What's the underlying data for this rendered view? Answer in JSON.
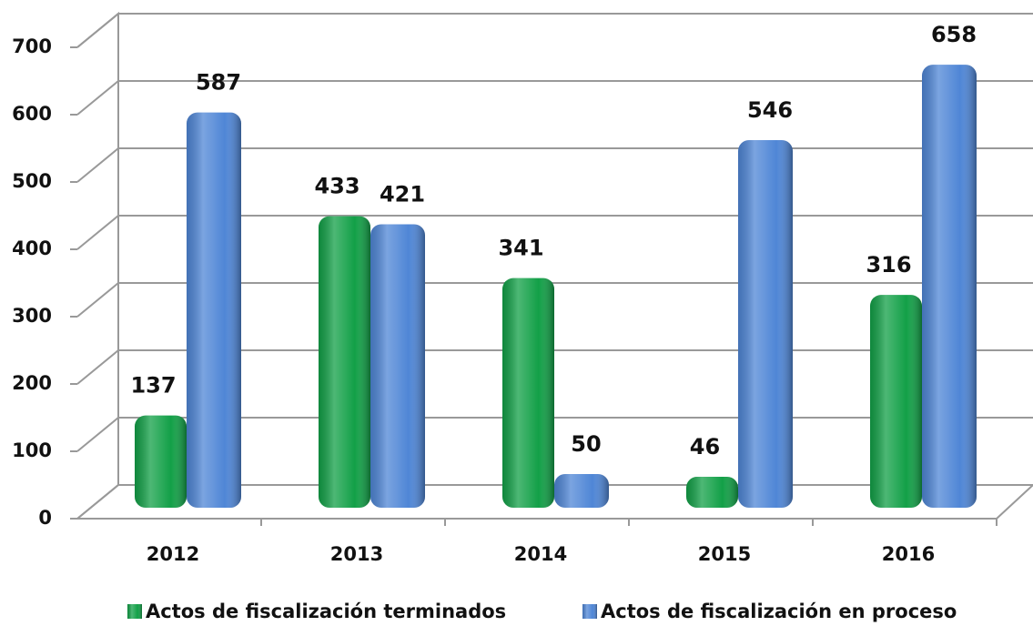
{
  "chart_data": {
    "type": "bar3d",
    "categories": [
      "2012",
      "2013",
      "2014",
      "2015",
      "2016"
    ],
    "series": [
      {
        "name": "Actos de fiscalización terminados",
        "color": "#12a047",
        "values": [
          137,
          433,
          341,
          46,
          316
        ]
      },
      {
        "name": "Actos de fiscalización en proceso",
        "color": "#4f86d6",
        "values": [
          587,
          421,
          50,
          546,
          658
        ]
      }
    ],
    "ylim": [
      0,
      700
    ],
    "yticks": [
      0,
      100,
      200,
      300,
      400,
      500,
      600,
      700
    ],
    "grid": true,
    "legend": "bottom"
  }
}
